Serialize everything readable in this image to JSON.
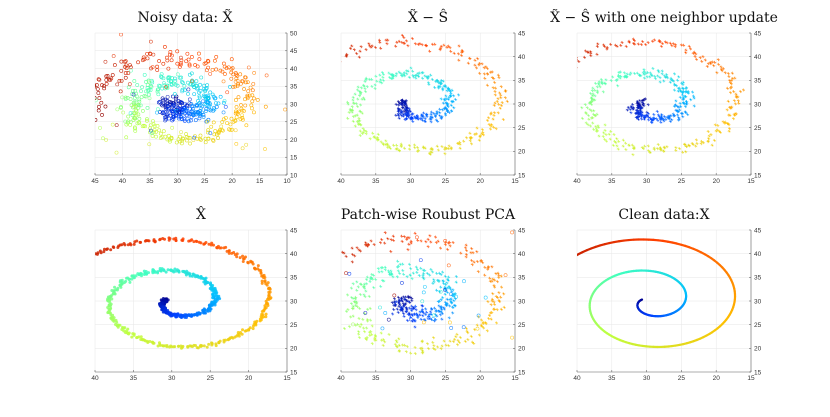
{
  "figure": {
    "description_type": "spiral scatter comparison grid",
    "colormap": [
      "#00008f",
      "#0040ff",
      "#00bfff",
      "#40ffbf",
      "#bfff40",
      "#ffbf00",
      "#ff4000",
      "#8f0000"
    ]
  },
  "chart_data": [
    {
      "type": "scatter",
      "title": "Noisy data: X̃",
      "xlim": [
        45,
        10
      ],
      "ylim": [
        10,
        50
      ],
      "xticks": [
        "45",
        "40",
        "35",
        "30",
        "25",
        "20",
        "15",
        "10"
      ],
      "yticks": [
        "10",
        "15",
        "20",
        "25",
        "30",
        "35",
        "40",
        "45",
        "50"
      ],
      "noise": 1.3,
      "outliers": 90,
      "marker": "circle",
      "grid": true
    },
    {
      "type": "scatter",
      "title": "X̃ − Ŝ",
      "xlim": [
        40,
        15
      ],
      "ylim": [
        15,
        45
      ],
      "xticks": [
        "40",
        "35",
        "30",
        "25",
        "20",
        "15"
      ],
      "yticks": [
        "15",
        "20",
        "25",
        "30",
        "35",
        "40",
        "45"
      ],
      "noise": 0.55,
      "outliers": 0,
      "marker": "star",
      "grid": true
    },
    {
      "type": "scatter",
      "title": "X̃ − Ŝ with one neighbor update",
      "xlim": [
        40,
        15
      ],
      "ylim": [
        15,
        45
      ],
      "xticks": [
        "40",
        "35",
        "30",
        "25",
        "20",
        "15"
      ],
      "yticks": [
        "15",
        "20",
        "25",
        "30",
        "35",
        "40",
        "45"
      ],
      "noise": 0.55,
      "outliers": 0,
      "marker": "star",
      "grid": true
    },
    {
      "type": "scatter",
      "title": "X̂",
      "xlim": [
        40,
        15
      ],
      "ylim": [
        15,
        45
      ],
      "xticks": [
        "40",
        "35",
        "30",
        "25",
        "20",
        "15"
      ],
      "yticks": [
        "15",
        "20",
        "25",
        "30",
        "35",
        "40",
        "45"
      ],
      "noise": 0.2,
      "outliers": 0,
      "marker": "dot",
      "grid": true
    },
    {
      "type": "scatter",
      "title": "Patch-wise Roubust PCA",
      "xlim": [
        40,
        15
      ],
      "ylim": [
        15,
        45
      ],
      "xticks": [
        "40",
        "35",
        "30",
        "25",
        "20",
        "15"
      ],
      "yticks": [
        "15",
        "20",
        "25",
        "30",
        "35",
        "40",
        "45"
      ],
      "noise": 0.85,
      "outliers": 45,
      "marker": "star",
      "grid": true
    },
    {
      "type": "line",
      "title": "Clean data:X",
      "xlim": [
        40,
        15
      ],
      "ylim": [
        15,
        45
      ],
      "xticks": [
        "40",
        "35",
        "30",
        "25",
        "20",
        "15"
      ],
      "yticks": [
        "15",
        "20",
        "25",
        "30",
        "35",
        "40",
        "45"
      ],
      "noise": 0,
      "outliers": 0,
      "marker": "line",
      "grid": true
    }
  ]
}
